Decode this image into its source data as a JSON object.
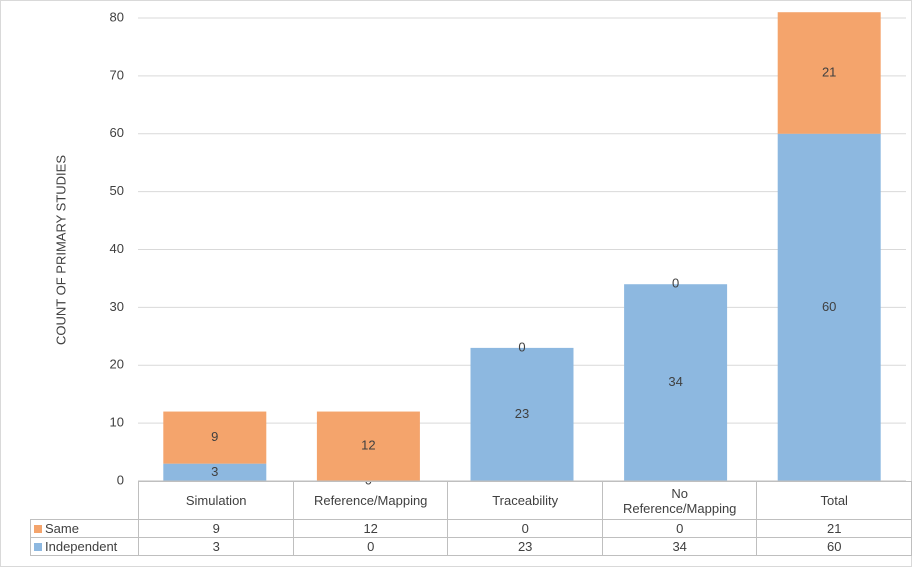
{
  "chart_data": {
    "type": "bar",
    "stacked": true,
    "y_label": "COUNT OF PRIMARY STUDIES",
    "categories": [
      "Simulation",
      "Reference/Mapping",
      "Traceability",
      "No Reference/Mapping",
      "Total"
    ],
    "series": [
      {
        "name": "Same",
        "color": "#f4a46c",
        "values": [
          9,
          12,
          0,
          0,
          21
        ]
      },
      {
        "name": "Independent",
        "color": "#8db8e0",
        "values": [
          3,
          0,
          23,
          34,
          60
        ]
      }
    ],
    "ylim": [
      0,
      80
    ],
    "yticks": [
      0,
      10,
      20,
      30,
      40,
      50,
      60,
      70,
      80
    ],
    "grid": true
  }
}
